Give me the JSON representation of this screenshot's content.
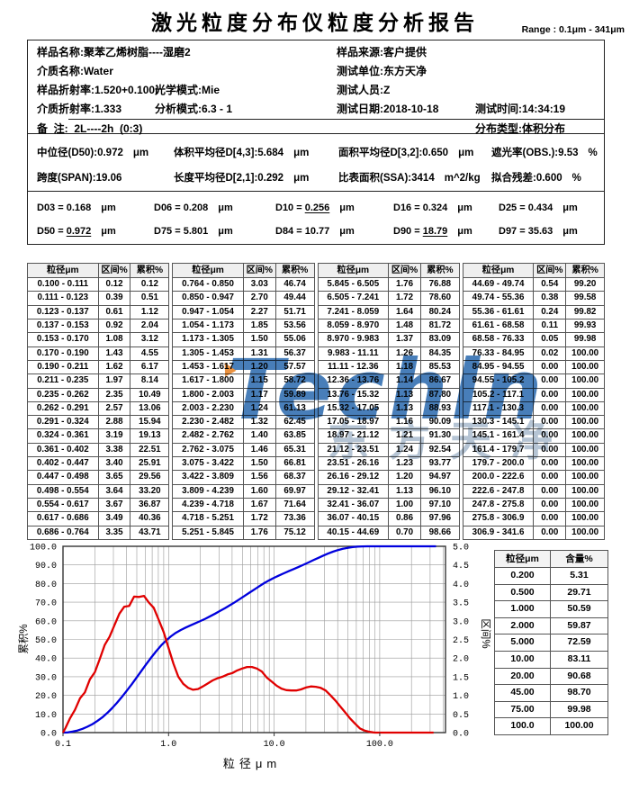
{
  "page": {
    "title": "激光粒度分布仪粒度分析报告",
    "range_label": "Range : 0.1μm - 341μm"
  },
  "info": {
    "sample_name": {
      "label": "样品名称",
      "value": "聚苯乙烯树脂----湿磨2"
    },
    "sample_source": {
      "label": "样品来源",
      "value": "客户提供"
    },
    "medium_name": {
      "label": "介质名称",
      "value": "Water"
    },
    "test_unit": {
      "label": "测试单位",
      "value": "东方天净"
    },
    "sample_ri": {
      "label": "样品折射率",
      "value": "1.520+0.100i"
    },
    "optical_mode": {
      "label": "光学模式",
      "value": "Mie"
    },
    "tester": {
      "label": "测试人员",
      "value": "Z"
    },
    "medium_ri": {
      "label": "介质折射率",
      "value": "1.333"
    },
    "analysis_mode": {
      "label": "分析模式",
      "value": "6.3 - 1"
    },
    "test_date": {
      "label": "测试日期",
      "value": "2018-10-18"
    },
    "test_time": {
      "label": "测试时间",
      "value": "14:34:19"
    },
    "remark": {
      "label": "备  注",
      "value": "  2L----2h  (0:3)"
    },
    "dist_type": {
      "label": "分布类型",
      "value": "体积分布"
    }
  },
  "stats": [
    {
      "label": "中位径(D50)",
      "value": "0.972",
      "unit": "μm"
    },
    {
      "label": "体积平均径D[4,3]",
      "value": "5.684",
      "unit": "μm"
    },
    {
      "label": "面积平均径D[3,2]",
      "value": "0.650",
      "unit": "μm"
    },
    {
      "label": "遮光率(OBS.)",
      "value": "9.53",
      "unit": "%"
    },
    {
      "label": "跨度(SPAN)",
      "value": "19.06",
      "unit": ""
    },
    {
      "label": "长度平均径D[2,1]",
      "value": "0.292",
      "unit": "μm"
    },
    {
      "label": "比表面积(SSA)",
      "value": "3414",
      "unit": "m^2/kg"
    },
    {
      "label": "拟合残差",
      "value": "0.600",
      "unit": "%"
    }
  ],
  "d_values": [
    {
      "name": "D03",
      "value": "0.168",
      "unit": "μm",
      "underline": false
    },
    {
      "name": "D06",
      "value": "0.208",
      "unit": "μm",
      "underline": false
    },
    {
      "name": "D10",
      "value": "0.256",
      "unit": "μm",
      "underline": true
    },
    {
      "name": "D16",
      "value": "0.324",
      "unit": "μm",
      "underline": false
    },
    {
      "name": "D25",
      "value": "0.434",
      "unit": "μm",
      "underline": false
    },
    {
      "name": "D50",
      "value": "0.972",
      "unit": "μm",
      "underline": true
    },
    {
      "name": "D75",
      "value": "5.801",
      "unit": "μm",
      "underline": false
    },
    {
      "name": "D84",
      "value": "10.77",
      "unit": "μm",
      "underline": false
    },
    {
      "name": "D90",
      "value": "18.79",
      "unit": "μm",
      "underline": true
    },
    {
      "name": "D97",
      "value": "35.63",
      "unit": "μm",
      "underline": false
    }
  ],
  "main_table": {
    "headers": [
      "粒径μm",
      "区间%",
      "累积%"
    ],
    "groups": [
      [
        [
          "0.100 - 0.111",
          "0.12",
          "0.12"
        ],
        [
          "0.111 - 0.123",
          "0.39",
          "0.51"
        ],
        [
          "0.123 - 0.137",
          "0.61",
          "1.12"
        ],
        [
          "0.137 - 0.153",
          "0.92",
          "2.04"
        ],
        [
          "0.153 - 0.170",
          "1.08",
          "3.12"
        ],
        [
          "0.170 - 0.190",
          "1.43",
          "4.55"
        ],
        [
          "0.190 - 0.211",
          "1.62",
          "6.17"
        ],
        [
          "0.211 - 0.235",
          "1.97",
          "8.14"
        ],
        [
          "0.235 - 0.262",
          "2.35",
          "10.49"
        ],
        [
          "0.262 - 0.291",
          "2.57",
          "13.06"
        ],
        [
          "0.291 - 0.324",
          "2.88",
          "15.94"
        ],
        [
          "0.324 - 0.361",
          "3.19",
          "19.13"
        ],
        [
          "0.361 - 0.402",
          "3.38",
          "22.51"
        ],
        [
          "0.402 - 0.447",
          "3.40",
          "25.91"
        ],
        [
          "0.447 - 0.498",
          "3.65",
          "29.56"
        ],
        [
          "0.498 - 0.554",
          "3.64",
          "33.20"
        ],
        [
          "0.554 - 0.617",
          "3.67",
          "36.87"
        ],
        [
          "0.617 - 0.686",
          "3.49",
          "40.36"
        ],
        [
          "0.686 - 0.764",
          "3.35",
          "43.71"
        ]
      ],
      [
        [
          "0.764 - 0.850",
          "3.03",
          "46.74"
        ],
        [
          "0.850 - 0.947",
          "2.70",
          "49.44"
        ],
        [
          "0.947 - 1.054",
          "2.27",
          "51.71"
        ],
        [
          "1.054 - 1.173",
          "1.85",
          "53.56"
        ],
        [
          "1.173 - 1.305",
          "1.50",
          "55.06"
        ],
        [
          "1.305 - 1.453",
          "1.31",
          "56.37"
        ],
        [
          "1.453 - 1.617",
          "1.20",
          "57.57"
        ],
        [
          "1.617 - 1.800",
          "1.15",
          "58.72"
        ],
        [
          "1.800 - 2.003",
          "1.17",
          "59.89"
        ],
        [
          "2.003 - 2.230",
          "1.24",
          "61.13"
        ],
        [
          "2.230 - 2.482",
          "1.32",
          "62.45"
        ],
        [
          "2.482 - 2.762",
          "1.40",
          "63.85"
        ],
        [
          "2.762 - 3.075",
          "1.46",
          "65.31"
        ],
        [
          "3.075 - 3.422",
          "1.50",
          "66.81"
        ],
        [
          "3.422 - 3.809",
          "1.56",
          "68.37"
        ],
        [
          "3.809 - 4.239",
          "1.60",
          "69.97"
        ],
        [
          "4.239 - 4.718",
          "1.67",
          "71.64"
        ],
        [
          "4.718 - 5.251",
          "1.72",
          "73.36"
        ],
        [
          "5.251 - 5.845",
          "1.76",
          "75.12"
        ]
      ],
      [
        [
          "5.845 - 6.505",
          "1.76",
          "76.88"
        ],
        [
          "6.505 - 7.241",
          "1.72",
          "78.60"
        ],
        [
          "7.241 - 8.059",
          "1.64",
          "80.24"
        ],
        [
          "8.059 - 8.970",
          "1.48",
          "81.72"
        ],
        [
          "8.970 - 9.983",
          "1.37",
          "83.09"
        ],
        [
          "9.983 - 11.11",
          "1.26",
          "84.35"
        ],
        [
          "11.11 - 12.36",
          "1.18",
          "85.53"
        ],
        [
          "12.36 - 13.76",
          "1.14",
          "86.67"
        ],
        [
          "13.76 - 15.32",
          "1.13",
          "87.80"
        ],
        [
          "15.32 - 17.05",
          "1.13",
          "88.93"
        ],
        [
          "17.05 - 18.97",
          "1.16",
          "90.09"
        ],
        [
          "18.97 - 21.12",
          "1.21",
          "91.30"
        ],
        [
          "21.12 - 23.51",
          "1.24",
          "92.54"
        ],
        [
          "23.51 - 26.16",
          "1.23",
          "93.77"
        ],
        [
          "26.16 - 29.12",
          "1.20",
          "94.97"
        ],
        [
          "29.12 - 32.41",
          "1.13",
          "96.10"
        ],
        [
          "32.41 - 36.07",
          "1.00",
          "97.10"
        ],
        [
          "36.07 - 40.15",
          "0.86",
          "97.96"
        ],
        [
          "40.15 - 44.69",
          "0.70",
          "98.66"
        ]
      ],
      [
        [
          "44.69 - 49.74",
          "0.54",
          "99.20"
        ],
        [
          "49.74 - 55.36",
          "0.38",
          "99.58"
        ],
        [
          "55.36 - 61.61",
          "0.24",
          "99.82"
        ],
        [
          "61.61 - 68.58",
          "0.11",
          "99.93"
        ],
        [
          "68.58 - 76.33",
          "0.05",
          "99.98"
        ],
        [
          "76.33 - 84.95",
          "0.02",
          "100.00"
        ],
        [
          "84.95 - 94.55",
          "0.00",
          "100.00"
        ],
        [
          "94.55 - 105.2",
          "0.00",
          "100.00"
        ],
        [
          "105.2 - 117.1",
          "0.00",
          "100.00"
        ],
        [
          "117.1 - 130.3",
          "0.00",
          "100.00"
        ],
        [
          "130.3 - 145.1",
          "0.00",
          "100.00"
        ],
        [
          "145.1 - 161.4",
          "0.00",
          "100.00"
        ],
        [
          "161.4 - 179.7",
          "0.00",
          "100.00"
        ],
        [
          "179.7 - 200.0",
          "0.00",
          "100.00"
        ],
        [
          "200.0 - 222.6",
          "0.00",
          "100.00"
        ],
        [
          "222.6 - 247.8",
          "0.00",
          "100.00"
        ],
        [
          "247.8 - 275.8",
          "0.00",
          "100.00"
        ],
        [
          "275.8 - 306.9",
          "0.00",
          "100.00"
        ],
        [
          "306.9 - 341.6",
          "0.00",
          "100.00"
        ]
      ]
    ]
  },
  "side_table": {
    "headers": [
      "粒径μm",
      "含量%"
    ],
    "rows": [
      [
        "0.200",
        "5.31"
      ],
      [
        "0.500",
        "29.71"
      ],
      [
        "1.000",
        "50.59"
      ],
      [
        "2.000",
        "59.87"
      ],
      [
        "5.000",
        "72.59"
      ],
      [
        "10.00",
        "83.11"
      ],
      [
        "20.00",
        "90.68"
      ],
      [
        "45.00",
        "98.70"
      ],
      [
        "75.00",
        "99.98"
      ],
      [
        "100.0",
        "100.00"
      ]
    ]
  },
  "chart_data": {
    "type": "line",
    "xlabel": "粒径μm",
    "x_scale": "log",
    "xlim": [
      0.1,
      341.6
    ],
    "x_ticks": [
      "0.1",
      "1.0",
      "10.0",
      "100.0"
    ],
    "grid": true,
    "left_axis": {
      "label": "累积%",
      "range": [
        0,
        100
      ],
      "tick_step": 10
    },
    "right_axis": {
      "label": "区间%",
      "range": [
        0,
        5
      ],
      "tick_step": 0.5
    },
    "bin_edges": [
      0.1,
      0.111,
      0.123,
      0.137,
      0.153,
      0.17,
      0.19,
      0.211,
      0.235,
      0.262,
      0.291,
      0.324,
      0.361,
      0.402,
      0.447,
      0.498,
      0.554,
      0.617,
      0.686,
      0.764,
      0.85,
      0.947,
      1.054,
      1.173,
      1.305,
      1.453,
      1.617,
      1.8,
      2.003,
      2.23,
      2.482,
      2.762,
      3.075,
      3.422,
      3.809,
      4.239,
      4.718,
      5.251,
      5.845,
      6.505,
      7.241,
      8.059,
      8.97,
      9.983,
      11.11,
      12.36,
      13.76,
      15.32,
      17.05,
      18.97,
      21.12,
      23.51,
      26.16,
      29.12,
      32.41,
      36.07,
      40.15,
      44.69,
      49.74,
      55.36,
      61.61,
      68.58,
      76.33,
      84.95,
      94.55,
      105.2,
      117.1,
      130.3,
      145.1,
      161.4,
      179.7,
      200.0,
      222.6,
      247.8,
      275.8,
      306.9,
      341.6
    ],
    "series": [
      {
        "name": "累积%",
        "axis": "left",
        "color": "#0000dd",
        "values": [
          0.12,
          0.51,
          1.12,
          2.04,
          3.12,
          4.55,
          6.17,
          8.14,
          10.49,
          13.06,
          15.94,
          19.13,
          22.51,
          25.91,
          29.56,
          33.2,
          36.87,
          40.36,
          43.71,
          46.74,
          49.44,
          51.71,
          53.56,
          55.06,
          56.37,
          57.57,
          58.72,
          59.89,
          61.13,
          62.45,
          63.85,
          65.31,
          66.81,
          68.37,
          69.97,
          71.64,
          73.36,
          75.12,
          76.88,
          78.6,
          80.24,
          81.72,
          83.09,
          84.35,
          85.53,
          86.67,
          87.8,
          88.93,
          90.09,
          91.3,
          92.54,
          93.77,
          94.97,
          96.1,
          97.1,
          97.96,
          98.66,
          99.2,
          99.58,
          99.82,
          99.93,
          99.98,
          100,
          100,
          100,
          100,
          100,
          100,
          100,
          100,
          100,
          100,
          100,
          100,
          100,
          100
        ]
      },
      {
        "name": "区间%",
        "axis": "right",
        "color": "#e00000",
        "values": [
          0.12,
          0.39,
          0.61,
          0.92,
          1.08,
          1.43,
          1.62,
          1.97,
          2.35,
          2.57,
          2.88,
          3.19,
          3.38,
          3.4,
          3.65,
          3.64,
          3.67,
          3.49,
          3.35,
          3.03,
          2.7,
          2.27,
          1.85,
          1.5,
          1.31,
          1.2,
          1.15,
          1.17,
          1.24,
          1.32,
          1.4,
          1.46,
          1.5,
          1.56,
          1.6,
          1.67,
          1.72,
          1.76,
          1.76,
          1.72,
          1.64,
          1.48,
          1.37,
          1.26,
          1.18,
          1.14,
          1.13,
          1.13,
          1.16,
          1.21,
          1.24,
          1.23,
          1.2,
          1.13,
          1.0,
          0.86,
          0.7,
          0.54,
          0.38,
          0.24,
          0.11,
          0.05,
          0.02,
          0,
          0,
          0,
          0,
          0,
          0,
          0,
          0,
          0,
          0,
          0,
          0,
          0
        ]
      }
    ]
  },
  "watermark": {
    "text": "Techln",
    "subtext": "东方天净",
    "colors": {
      "blue": "#2767ad",
      "orange": "#e87f1e",
      "gray": "#6c8aaa"
    }
  }
}
